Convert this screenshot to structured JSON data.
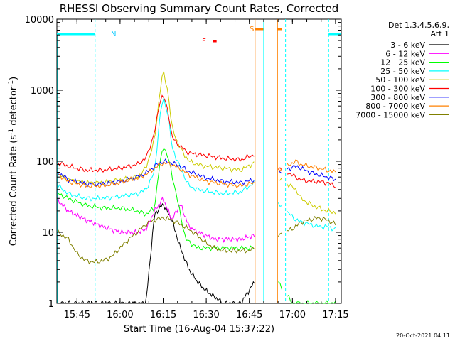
{
  "chart_data": {
    "type": "line",
    "title": "RHESSI Observing Summary Count Rates, Corrected",
    "xlabel": "Start Time (16-Aug-04 15:37:22)",
    "ylabel_main": "Corrected Count Rate (s",
    "ylabel_exp1": "-1",
    "ylabel_mid": " detector",
    "ylabel_exp2": "-1",
    "ylabel_end": ")",
    "y_scale": "log",
    "ylim": [
      1,
      10000
    ],
    "xlim_minutes": [
      15.6333,
      17.2833
    ],
    "x_ticks": [
      {
        "label": "15:45",
        "value": 15.75
      },
      {
        "label": "16:00",
        "value": 16.0
      },
      {
        "label": "16:15",
        "value": 16.25
      },
      {
        "label": "16:30",
        "value": 16.5
      },
      {
        "label": "16:45",
        "value": 16.75
      },
      {
        "label": "17:00",
        "value": 17.0
      },
      {
        "label": "17:15",
        "value": 17.25
      }
    ],
    "y_ticks": [
      {
        "label": "1",
        "value": 1
      },
      {
        "label": "10",
        "value": 10
      },
      {
        "label": "100",
        "value": 100
      },
      {
        "label": "1000",
        "value": 1000
      },
      {
        "label": "10000",
        "value": 10000
      }
    ],
    "legend_header_1": "Det 1,3,4,5,6,9,",
    "legend_header_2": "Att 1",
    "legend_placement": "right",
    "flag_labels": {
      "night": "N",
      "flare": "F",
      "saa": "S"
    },
    "footer_date": "20-Oct-2021 04:11",
    "series": [
      {
        "name": "3 - 6 keV",
        "color": "#000000",
        "x": [
          15.64,
          15.75,
          15.9,
          16.05,
          16.15,
          16.2,
          16.25,
          16.3,
          16.35,
          16.4,
          16.45,
          16.5,
          16.6,
          16.7,
          16.78
        ],
        "y": [
          1,
          1,
          1,
          1,
          1,
          18,
          25,
          15,
          6,
          3,
          2,
          1.5,
          1,
          1,
          2
        ]
      },
      {
        "name": "6 - 12 keV",
        "color": "#ff00ff",
        "x": [
          15.64,
          15.7,
          15.8,
          15.9,
          16.0,
          16.05,
          16.1,
          16.15,
          16.2,
          16.25,
          16.3,
          16.35,
          16.4,
          16.45,
          16.5,
          16.55,
          16.6,
          16.7,
          16.78
        ],
        "y": [
          28,
          20,
          15,
          12,
          10,
          10,
          10,
          11,
          20,
          30,
          15,
          25,
          12,
          10,
          9,
          8,
          8,
          8,
          9
        ]
      },
      {
        "name": "12 - 25 keV",
        "color": "#00ff00",
        "x": [
          15.64,
          15.7,
          15.8,
          15.9,
          16.0,
          16.1,
          16.15,
          16.2,
          16.22,
          16.25,
          16.28,
          16.32,
          16.38,
          16.45,
          16.5,
          16.6,
          16.7,
          16.78,
          17.0,
          17.05,
          17.1,
          17.2,
          17.25
        ],
        "y": [
          35,
          30,
          24,
          22,
          22,
          20,
          18,
          22,
          60,
          170,
          110,
          40,
          8,
          6,
          6,
          6,
          6,
          6,
          1,
          1,
          1,
          1,
          1
        ]
      },
      {
        "name": "25 - 50 keV",
        "color": "#00ffff",
        "x": [
          15.64,
          15.7,
          15.8,
          15.9,
          16.0,
          16.1,
          16.15,
          16.2,
          16.23,
          16.25,
          16.28,
          16.3,
          16.35,
          16.4,
          16.45,
          16.5,
          16.6,
          16.7,
          16.78,
          17.02,
          17.05,
          17.1,
          17.15,
          17.2,
          17.25
        ],
        "y": [
          45,
          35,
          30,
          30,
          32,
          35,
          40,
          70,
          400,
          800,
          450,
          160,
          80,
          45,
          40,
          38,
          35,
          37,
          50,
          15,
          14,
          13,
          12,
          12,
          11
        ]
      },
      {
        "name": "50 - 100 keV",
        "color": "#cccc00",
        "x": [
          15.64,
          15.7,
          15.8,
          15.9,
          16.0,
          16.1,
          16.15,
          16.2,
          16.23,
          16.25,
          16.28,
          16.3,
          16.35,
          16.4,
          16.45,
          16.5,
          16.6,
          16.7,
          16.78,
          17.02,
          17.05,
          17.1,
          17.15,
          17.2,
          17.25
        ],
        "y": [
          65,
          55,
          50,
          50,
          55,
          60,
          80,
          200,
          900,
          1900,
          900,
          300,
          150,
          100,
          90,
          85,
          80,
          75,
          95,
          40,
          30,
          25,
          22,
          20,
          19
        ]
      },
      {
        "name": "100 - 300 keV",
        "color": "#ff0000",
        "x": [
          15.64,
          15.7,
          15.8,
          15.9,
          16.0,
          16.1,
          16.15,
          16.2,
          16.23,
          16.25,
          16.28,
          16.3,
          16.35,
          16.4,
          16.45,
          16.5,
          16.6,
          16.7,
          16.78,
          17.02,
          17.05,
          17.1,
          17.15,
          17.2,
          17.25
        ],
        "y": [
          95,
          85,
          75,
          75,
          80,
          90,
          110,
          250,
          700,
          850,
          500,
          220,
          160,
          130,
          125,
          120,
          110,
          105,
          125,
          60,
          55,
          52,
          52,
          50,
          45
        ]
      },
      {
        "name": "300 - 800 keV",
        "color": "#0000ff",
        "x": [
          15.64,
          15.7,
          15.8,
          15.9,
          16.0,
          16.1,
          16.15,
          16.2,
          16.25,
          16.3,
          16.35,
          16.4,
          16.45,
          16.5,
          16.6,
          16.7,
          16.78,
          17.02,
          17.05,
          17.1,
          17.15,
          17.2,
          17.25
        ],
        "y": [
          70,
          55,
          48,
          48,
          52,
          60,
          68,
          85,
          100,
          95,
          85,
          72,
          65,
          58,
          52,
          50,
          55,
          85,
          80,
          70,
          65,
          60,
          55
        ]
      },
      {
        "name": "800 - 7000 keV",
        "color": "#ff8000",
        "x": [
          15.64,
          15.7,
          15.8,
          15.9,
          16.0,
          16.1,
          16.15,
          16.2,
          16.25,
          16.3,
          16.35,
          16.4,
          16.45,
          16.5,
          16.6,
          16.7,
          16.78,
          17.02,
          17.05,
          17.1,
          17.15,
          17.2,
          17.25
        ],
        "y": [
          65,
          52,
          45,
          45,
          50,
          58,
          65,
          80,
          95,
          90,
          78,
          65,
          58,
          52,
          48,
          45,
          50,
          100,
          90,
          85,
          80,
          75,
          70
        ]
      },
      {
        "name": "7000 - 15000 keV",
        "color": "#808000",
        "x": [
          15.64,
          15.7,
          15.75,
          15.8,
          15.85,
          15.9,
          15.95,
          16.0,
          16.05,
          16.1,
          16.15,
          16.2,
          16.25,
          16.3,
          16.35,
          16.4,
          16.45,
          16.5,
          16.55,
          16.6,
          16.65,
          16.7,
          16.75,
          16.78,
          17.02,
          17.05,
          17.1,
          17.15,
          17.2,
          17.25
        ],
        "y": [
          10,
          8,
          5,
          4,
          3.8,
          4,
          4.5,
          6,
          8,
          10,
          13,
          15,
          16,
          15,
          13,
          11,
          9,
          7,
          6,
          5.5,
          5.5,
          5.5,
          5.5,
          6,
          12,
          14,
          15,
          16,
          15,
          13
        ]
      }
    ],
    "flags": {
      "night": [
        [
          15.6333,
          15.855
        ],
        [
          17.21,
          17.2833
        ]
      ],
      "saa": [
        [
          16.7833,
          16.8333
        ],
        [
          16.9133,
          16.94
        ]
      ],
      "flare": [
        [
          16.54,
          16.56
        ]
      ],
      "night_markers": [
        15.855,
        16.96,
        17.21
      ],
      "saa_markers": [
        16.7833,
        16.9133
      ],
      "data_gaps": [
        [
          16.7833,
          16.9133
        ],
        [
          16.94,
          16.96
        ]
      ]
    }
  }
}
